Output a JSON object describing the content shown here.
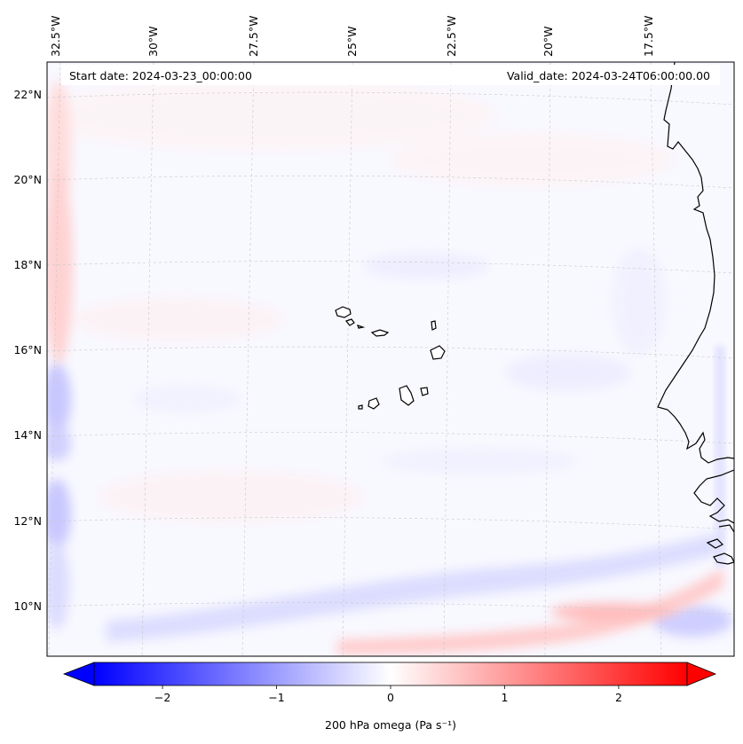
{
  "header": {
    "start_date": "Start date: 2024-03-23_00:00:00",
    "valid_date": "Valid_date: 2024-03-24T06:00:00.00"
  },
  "axes": {
    "lon_labels": [
      {
        "value": -32.5,
        "label": "32.5°W"
      },
      {
        "value": -30.0,
        "label": "30°W"
      },
      {
        "value": -27.5,
        "label": "27.5°W"
      },
      {
        "value": -25.0,
        "label": "25°W"
      },
      {
        "value": -22.5,
        "label": "22.5°W"
      },
      {
        "value": -20.0,
        "label": "20°W"
      },
      {
        "value": -17.5,
        "label": "17.5°W"
      }
    ],
    "lat_labels": [
      {
        "value": 22,
        "label": "22°N"
      },
      {
        "value": 20,
        "label": "20°N"
      },
      {
        "value": 18,
        "label": "18°N"
      },
      {
        "value": 16,
        "label": "16°N"
      },
      {
        "value": 14,
        "label": "14°N"
      },
      {
        "value": 12,
        "label": "12°N"
      },
      {
        "value": 10,
        "label": "10°N"
      }
    ]
  },
  "colorbar": {
    "label": "200 hPa omega (Pa s⁻¹)",
    "min": -2.6,
    "max": 2.6,
    "cmap": "bwr",
    "ticks": [
      {
        "value": -2,
        "label": "−2"
      },
      {
        "value": -1,
        "label": "−1"
      },
      {
        "value": 0,
        "label": "0"
      },
      {
        "value": 1,
        "label": "1"
      },
      {
        "value": 2,
        "label": "2"
      }
    ],
    "colors": {
      "low": "#0000ff",
      "mid": "#ffffff",
      "high": "#ff0000"
    }
  },
  "field": {
    "background_color": "#f8f8ff",
    "features": [
      {
        "name": "western-edge-band",
        "sign": "mixed"
      },
      {
        "name": "southern-positive-band",
        "sign": "positive"
      },
      {
        "name": "southern-negative-band",
        "sign": "negative"
      }
    ]
  },
  "map": {
    "coastline_color": "#000000",
    "gridline_color": "#c8c8c8"
  }
}
